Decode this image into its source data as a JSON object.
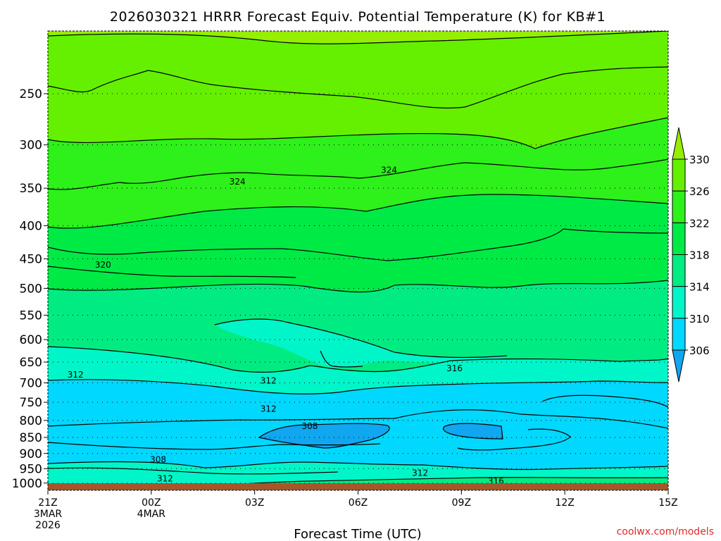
{
  "chart_data": {
    "type": "heatmap",
    "title": "2026030321 HRRR Forecast Equiv. Potential Temperature (K) for KB#1",
    "xlabel": "Forecast Time (UTC)",
    "ylabel": "",
    "x_ticks": [
      {
        "lines": [
          "21Z",
          "3MAR",
          "2026"
        ],
        "hours": 0
      },
      {
        "lines": [
          "00Z",
          "4MAR"
        ],
        "hours": 3
      },
      {
        "lines": [
          "03Z"
        ],
        "hours": 6
      },
      {
        "lines": [
          "06Z"
        ],
        "hours": 9
      },
      {
        "lines": [
          "09Z"
        ],
        "hours": 12
      },
      {
        "lines": [
          "12Z"
        ],
        "hours": 15
      },
      {
        "lines": [
          "15Z"
        ],
        "hours": 18
      }
    ],
    "xlim_hours": [
      0,
      18
    ],
    "y_ticks": [
      250,
      300,
      350,
      400,
      450,
      500,
      550,
      600,
      650,
      700,
      750,
      800,
      850,
      900,
      950,
      1000
    ],
    "ylim": [
      1026,
      200
    ],
    "y_scale": "log",
    "grid": "dotted horizontal at pressure levels",
    "colorbar": {
      "ticks": [
        330,
        326,
        322,
        318,
        314,
        310,
        306
      ],
      "bins": [
        {
          "range": ">330",
          "color": "#96ee00"
        },
        {
          "range": "326-330",
          "color": "#64f000"
        },
        {
          "range": "322-326",
          "color": "#2ef01a"
        },
        {
          "range": "318-322",
          "color": "#00ea46"
        },
        {
          "range": "314-318",
          "color": "#00ec82"
        },
        {
          "range": "310-314",
          "color": "#00f6c8"
        },
        {
          "range": "306-310",
          "color": "#00d8ff"
        },
        {
          "range": "<306",
          "color": "#10a6f0"
        }
      ]
    },
    "contour_interval": 2,
    "contour_labels": [
      {
        "text": "324",
        "hours": 5.5,
        "p": 342
      },
      {
        "text": "324",
        "hours": 9.9,
        "p": 328
      },
      {
        "text": "320",
        "hours": 1.6,
        "p": 460
      },
      {
        "text": "316",
        "hours": 11.8,
        "p": 665
      },
      {
        "text": "312",
        "hours": 0.8,
        "p": 680
      },
      {
        "text": "312",
        "hours": 6.4,
        "p": 695
      },
      {
        "text": "312",
        "hours": 6.4,
        "p": 768
      },
      {
        "text": "308",
        "hours": 7.6,
        "p": 817
      },
      {
        "text": "308",
        "hours": 3.2,
        "p": 920
      },
      {
        "text": "312",
        "hours": 3.4,
        "p": 985
      },
      {
        "text": "312",
        "hours": 10.8,
        "p": 965
      },
      {
        "text": "316",
        "hours": 13.0,
        "p": 993
      }
    ],
    "ground_color": "#a5572b",
    "credit": "coolwx.com/models"
  }
}
